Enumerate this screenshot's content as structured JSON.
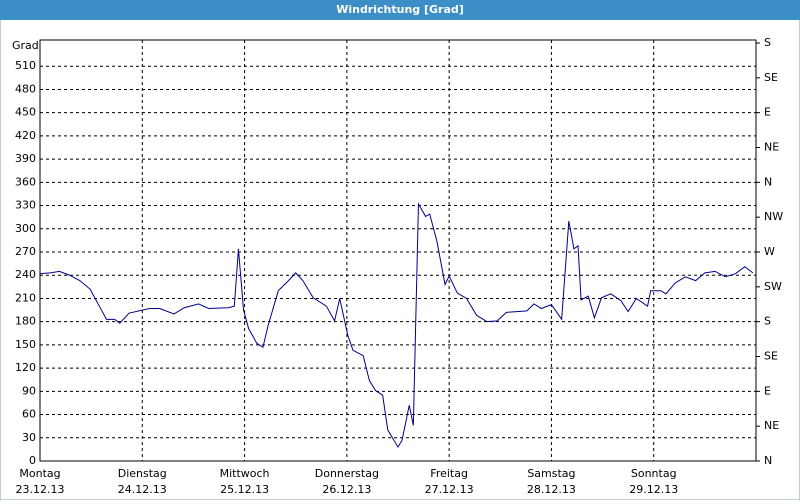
{
  "chart_data": {
    "type": "line",
    "title": "Windrichtung [Grad]",
    "y_label": "Grad",
    "color": "#00008b",
    "grid": true,
    "xlim": [
      0,
      7
    ],
    "xticks": [
      {
        "value": 0,
        "label": "Montag",
        "date": "23.12.13"
      },
      {
        "value": 1,
        "label": "Dienstag",
        "date": "24.12.13"
      },
      {
        "value": 2,
        "label": "Mittwoch",
        "date": "25.12.13"
      },
      {
        "value": 3,
        "label": "Donnerstag",
        "date": "26.12.13"
      },
      {
        "value": 4,
        "label": "Freitag",
        "date": "27.12.13"
      },
      {
        "value": 5,
        "label": "Samstag",
        "date": "28.12.13"
      },
      {
        "value": 6,
        "label": "Sonntag",
        "date": "29.12.13"
      }
    ],
    "ylim": [
      0,
      540
    ],
    "yticks": [
      0,
      30,
      60,
      90,
      120,
      150,
      180,
      210,
      240,
      270,
      300,
      330,
      360,
      390,
      420,
      450,
      480,
      510
    ],
    "y2lim": [
      0,
      540
    ],
    "y2ticks": [
      {
        "value": 0,
        "label": "N"
      },
      {
        "value": 45,
        "label": "NE"
      },
      {
        "value": 90,
        "label": "E"
      },
      {
        "value": 135,
        "label": "SE"
      },
      {
        "value": 180,
        "label": "S"
      },
      {
        "value": 225,
        "label": "SW"
      },
      {
        "value": 270,
        "label": "W"
      },
      {
        "value": 315,
        "label": "NW"
      },
      {
        "value": 360,
        "label": "N"
      },
      {
        "value": 405,
        "label": "NE"
      },
      {
        "value": 450,
        "label": "E"
      },
      {
        "value": 495,
        "label": "SE"
      },
      {
        "value": 540,
        "label": "S"
      }
    ],
    "x": [
      0,
      0.1,
      0.19,
      0.29,
      0.39,
      0.49,
      0.58,
      0.65,
      0.73,
      0.78,
      0.87,
      1.07,
      1.17,
      1.31,
      1.41,
      1.55,
      1.65,
      1.84,
      1.9,
      1.94,
      1.99,
      2.04,
      2.12,
      2.18,
      2.23,
      2.33,
      2.43,
      2.5,
      2.57,
      2.67,
      2.8,
      2.88,
      2.93,
      3.01,
      3.06,
      3.16,
      3.22,
      3.28,
      3.35,
      3.4,
      3.5,
      3.54,
      3.61,
      3.65,
      3.7,
      3.77,
      3.81,
      3.88,
      3.96,
      4.0,
      4.08,
      4.17,
      4.27,
      4.37,
      4.47,
      4.56,
      4.66,
      4.76,
      4.83,
      4.9,
      5.0,
      5.1,
      5.17,
      5.22,
      5.26,
      5.29,
      5.36,
      5.42,
      5.49,
      5.58,
      5.68,
      5.75,
      5.83,
      5.94,
      5.97,
      6.07,
      6.12,
      6.21,
      6.31,
      6.41,
      6.5,
      6.6,
      6.7,
      6.8,
      6.89,
      6.97
    ],
    "values": [
      242,
      243,
      245,
      240,
      233,
      222,
      200,
      183,
      183,
      178,
      191,
      197,
      197,
      190,
      198,
      203,
      197,
      198,
      200,
      274,
      195,
      171,
      152,
      147,
      175,
      220,
      233,
      243,
      233,
      211,
      200,
      181,
      210,
      162,
      143,
      136,
      104,
      91,
      85,
      40,
      18,
      27,
      72,
      46,
      332,
      316,
      319,
      284,
      228,
      239,
      217,
      210,
      188,
      180,
      181,
      192,
      193,
      194,
      203,
      197,
      202,
      183,
      310,
      274,
      278,
      208,
      213,
      185,
      211,
      216,
      207,
      193,
      210,
      200,
      220,
      220,
      216,
      230,
      238,
      233,
      243,
      245,
      238,
      242,
      251,
      243
    ]
  }
}
